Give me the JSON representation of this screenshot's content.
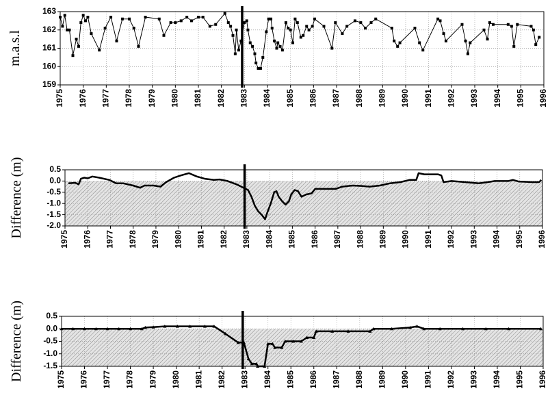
{
  "chart_data": [
    {
      "type": "line",
      "ylabel": "m.a.s.l",
      "marker": "square",
      "line_width": 1,
      "fill_below_zero": false,
      "grid": true,
      "event_x": 1982.9,
      "xlim": [
        1975,
        1996
      ],
      "ylim": [
        159,
        163
      ],
      "xticks": [
        1975,
        1976,
        1977,
        1978,
        1979,
        1980,
        1981,
        1982,
        1983,
        1984,
        1985,
        1986,
        1987,
        1988,
        1989,
        1990,
        1991,
        1992,
        1993,
        1994,
        1995,
        1996
      ],
      "yticks": [
        159,
        160,
        161,
        162,
        163
      ],
      "x": [
        1975.0,
        1975.1,
        1975.2,
        1975.3,
        1975.4,
        1975.55,
        1975.7,
        1975.8,
        1975.9,
        1976.0,
        1976.1,
        1976.2,
        1976.35,
        1976.7,
        1976.95,
        1977.2,
        1977.45,
        1977.7,
        1978.0,
        1978.2,
        1978.4,
        1978.7,
        1979.3,
        1979.5,
        1979.8,
        1980.0,
        1980.25,
        1980.5,
        1980.7,
        1981.0,
        1981.2,
        1981.5,
        1981.75,
        1982.15,
        1982.3,
        1982.4,
        1982.5,
        1982.6,
        1982.65,
        1982.75,
        1982.85,
        1983.0,
        1983.1,
        1983.15,
        1983.25,
        1983.35,
        1983.45,
        1983.5,
        1983.6,
        1983.7,
        1983.8,
        1983.95,
        1984.05,
        1984.15,
        1984.2,
        1984.3,
        1984.4,
        1984.45,
        1984.55,
        1984.65,
        1984.8,
        1984.9,
        1985.0,
        1985.1,
        1985.2,
        1985.3,
        1985.45,
        1985.55,
        1985.7,
        1985.8,
        1985.95,
        1986.05,
        1986.45,
        1986.8,
        1986.95,
        1987.25,
        1987.45,
        1987.8,
        1988.05,
        1988.25,
        1988.5,
        1988.7,
        1989.4,
        1989.5,
        1989.65,
        1989.75,
        1990.4,
        1990.6,
        1990.75,
        1991.4,
        1991.5,
        1991.65,
        1991.75,
        1992.45,
        1992.6,
        1992.7,
        1992.8,
        1993.4,
        1993.55,
        1993.65,
        1993.8,
        1994.45,
        1994.6,
        1994.7,
        1994.85,
        1995.45,
        1995.55,
        1995.65,
        1995.8
      ],
      "values": [
        162.7,
        162.2,
        162.8,
        162.0,
        162.0,
        160.6,
        161.5,
        161.1,
        162.4,
        162.8,
        162.5,
        162.7,
        161.8,
        160.9,
        162.1,
        162.7,
        161.4,
        162.6,
        162.6,
        162.1,
        161.1,
        162.7,
        162.6,
        161.7,
        162.4,
        162.4,
        162.5,
        162.7,
        162.5,
        162.7,
        162.7,
        162.2,
        162.3,
        162.9,
        162.4,
        162.2,
        161.7,
        160.7,
        162.0,
        160.9,
        161.4,
        162.4,
        162.5,
        162.0,
        161.3,
        161.1,
        160.7,
        160.2,
        159.9,
        159.9,
        160.5,
        161.9,
        162.6,
        162.6,
        162.1,
        161.4,
        161.0,
        161.3,
        161.1,
        160.9,
        162.4,
        162.1,
        162.0,
        161.3,
        162.6,
        162.4,
        161.6,
        161.7,
        162.2,
        162.0,
        162.2,
        162.6,
        162.2,
        161.0,
        162.4,
        161.8,
        162.2,
        162.5,
        162.4,
        162.1,
        162.4,
        162.6,
        162.1,
        161.4,
        161.1,
        161.3,
        162.1,
        161.3,
        160.9,
        162.6,
        162.5,
        161.8,
        161.4,
        162.3,
        161.4,
        160.7,
        161.3,
        162.0,
        161.5,
        162.4,
        162.3,
        162.3,
        162.2,
        161.1,
        162.3,
        162.2,
        162.0,
        161.2,
        161.6
      ]
    },
    {
      "type": "line",
      "ylabel": "Difference (m)",
      "marker": "none",
      "line_width": 2.5,
      "fill_below_zero": true,
      "grid": true,
      "event_x": 1982.9,
      "xlim": [
        1975,
        1996
      ],
      "ylim": [
        -2,
        0.5
      ],
      "xticks": [
        1975,
        1976,
        1977,
        1978,
        1979,
        1980,
        1981,
        1982,
        1983,
        1984,
        1985,
        1986,
        1987,
        1988,
        1989,
        1990,
        1991,
        1992,
        1993,
        1994,
        1995,
        1996
      ],
      "yticks": [
        0.5,
        {
          "value": 0,
          "label": "0.0"
        },
        -0.5,
        {
          "value": -1,
          "label": "-1.0"
        },
        -1.5,
        {
          "value": -2,
          "label": "-2.0"
        }
      ],
      "x": [
        1975.15,
        1975.45,
        1975.6,
        1975.7,
        1975.85,
        1976.0,
        1976.2,
        1976.5,
        1976.95,
        1977.25,
        1977.55,
        1978.0,
        1978.3,
        1978.5,
        1978.9,
        1979.2,
        1979.45,
        1979.8,
        1980.1,
        1980.45,
        1980.8,
        1981.15,
        1981.55,
        1981.8,
        1982.15,
        1982.55,
        1982.85,
        1983.05,
        1983.2,
        1983.35,
        1983.5,
        1983.65,
        1983.8,
        1983.9,
        1984.05,
        1984.2,
        1984.3,
        1984.4,
        1984.55,
        1984.7,
        1984.85,
        1984.95,
        1985.1,
        1985.25,
        1985.4,
        1985.6,
        1985.85,
        1986.0,
        1986.45,
        1986.9,
        1987.2,
        1987.65,
        1988.05,
        1988.4,
        1988.85,
        1989.3,
        1989.75,
        1990.15,
        1990.45,
        1990.55,
        1990.8,
        1991.4,
        1991.55,
        1991.65,
        1992.0,
        1992.6,
        1993.2,
        1993.6,
        1993.9,
        1994.5,
        1994.7,
        1994.95,
        1995.55,
        1995.85,
        1995.95
      ],
      "values": [
        -0.1,
        -0.08,
        -0.15,
        0.1,
        0.15,
        0.12,
        0.2,
        0.15,
        0.05,
        -0.1,
        -0.1,
        -0.2,
        -0.3,
        -0.2,
        -0.2,
        -0.25,
        -0.05,
        0.15,
        0.25,
        0.35,
        0.2,
        0.1,
        0.05,
        0.07,
        0.0,
        -0.15,
        -0.3,
        -0.4,
        -0.7,
        -1.1,
        -1.35,
        -1.5,
        -1.7,
        -1.4,
        -1.0,
        -0.5,
        -0.45,
        -0.7,
        -0.9,
        -1.05,
        -0.9,
        -0.6,
        -0.4,
        -0.45,
        -0.7,
        -0.6,
        -0.55,
        -0.35,
        -0.35,
        -0.35,
        -0.25,
        -0.2,
        -0.22,
        -0.25,
        -0.2,
        -0.1,
        -0.05,
        0.05,
        0.05,
        0.35,
        0.3,
        0.3,
        0.25,
        -0.05,
        0.0,
        -0.05,
        -0.1,
        -0.05,
        0.0,
        0.0,
        0.05,
        -0.02,
        -0.05,
        -0.05,
        0.05
      ]
    },
    {
      "type": "line",
      "ylabel": "Difference (m)",
      "marker": "triangle",
      "line_width": 2.5,
      "fill_below_zero": true,
      "grid": true,
      "event_x": 1982.9,
      "xlim": [
        1975,
        1996
      ],
      "ylim": [
        -1.5,
        0.5
      ],
      "xticks": [
        1975,
        1976,
        1977,
        1978,
        1979,
        1980,
        1981,
        1982,
        1983,
        1984,
        1985,
        1986,
        1987,
        1988,
        1989,
        1990,
        1991,
        1992,
        1993,
        1994,
        1995,
        1996
      ],
      "yticks": [
        0.5,
        {
          "value": 0,
          "label": "0.0"
        },
        -0.5,
        {
          "value": -1,
          "label": "-1.0"
        },
        -1.5
      ],
      "x": [
        1975.0,
        1975.5,
        1976.0,
        1976.5,
        1977.0,
        1977.5,
        1978.0,
        1978.5,
        1978.65,
        1979.0,
        1979.5,
        1980.05,
        1980.6,
        1981.25,
        1981.65,
        1982.15,
        1982.7,
        1982.95,
        1983.15,
        1983.3,
        1983.5,
        1983.55,
        1983.85,
        1984.0,
        1984.2,
        1984.3,
        1984.6,
        1984.75,
        1985.1,
        1985.45,
        1985.7,
        1986.0,
        1986.1,
        1986.8,
        1987.5,
        1988.45,
        1988.6,
        1989.4,
        1990.2,
        1990.5,
        1990.8,
        1991.5,
        1992.5,
        1993.5,
        1994.5,
        1995.9
      ],
      "values": [
        0.0,
        0.0,
        0.0,
        0.0,
        0.0,
        0.0,
        0.0,
        0.0,
        0.05,
        0.07,
        0.1,
        0.1,
        0.1,
        0.1,
        0.1,
        -0.2,
        -0.55,
        -0.55,
        -1.2,
        -1.4,
        -1.4,
        -1.5,
        -1.5,
        -0.6,
        -0.6,
        -0.75,
        -0.75,
        -0.5,
        -0.5,
        -0.5,
        -0.35,
        -0.35,
        -0.1,
        -0.1,
        -0.1,
        -0.1,
        0.0,
        0.0,
        0.05,
        0.1,
        0.0,
        0.0,
        0.0,
        0.0,
        0.0,
        0.0
      ]
    }
  ]
}
